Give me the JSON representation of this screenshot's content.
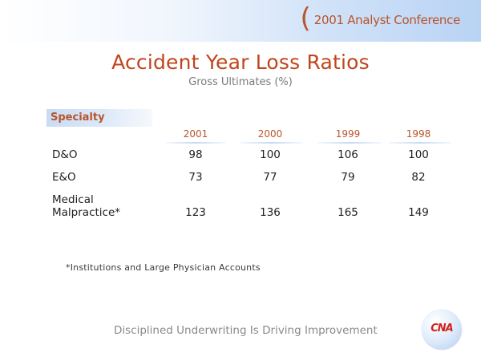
{
  "header": {
    "paren": "(",
    "conference": "2001 Analyst Conference"
  },
  "title": "Accident Year Loss Ratios",
  "subtitle": "Gross Ultimates (%)",
  "table": {
    "specialty_label": "Specialty",
    "years": [
      "2001",
      "2000",
      "1999",
      "1998"
    ],
    "rows": [
      {
        "label_lines": [
          "D&O"
        ],
        "values": [
          "98",
          "100",
          "106",
          "100"
        ]
      },
      {
        "label_lines": [
          "E&O"
        ],
        "values": [
          "73",
          "77",
          "79",
          "82"
        ]
      },
      {
        "label_lines": [
          "Medical",
          "Malpractice*"
        ],
        "values": [
          "123",
          "136",
          "165",
          "149"
        ]
      }
    ]
  },
  "footnote": "*Institutions and Large Physician Accounts",
  "tagline": "Disciplined Underwriting Is Driving Improvement",
  "logo": {
    "text": "CNA",
    "color": "#d2231b"
  },
  "colors": {
    "accent": "#c0451e",
    "band": "#b9d3f4"
  }
}
